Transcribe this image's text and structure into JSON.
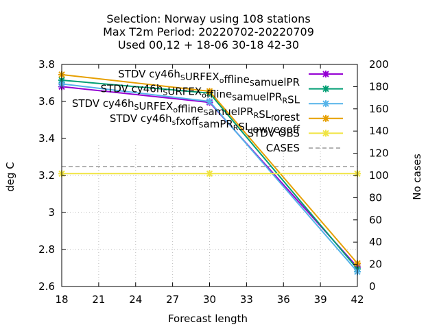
{
  "chart_data": {
    "type": "line",
    "title_lines": [
      "Selection: Norway using   108 stations",
      "Max T2m   Period: 20220702-20220709",
      "Used  00,12  + 18-06 30-18 42-30"
    ],
    "xlabel": "Forecast length",
    "ylabel": "deg C",
    "y2label": "No cases",
    "x_ticks": [
      "18",
      "21",
      "24",
      "27",
      "30",
      "33",
      "36",
      "39",
      "42"
    ],
    "y_ticks": [
      "3.8",
      "3.6",
      "3.4",
      "3.2",
      "3",
      "2.8",
      "2.6"
    ],
    "y2_ticks": [
      "200",
      "180",
      "160",
      "140",
      "120",
      "100",
      "80",
      "60",
      "40",
      "20",
      "0"
    ],
    "xlim": [
      18,
      42
    ],
    "ylim": [
      2.6,
      3.8
    ],
    "y2lim": [
      0,
      200
    ],
    "grid": "dotted, lower-left area only",
    "legend_position": "top-right",
    "x": [
      18,
      30,
      42
    ],
    "series": [
      {
        "name": "STDV cy46h_SURFEX_offline_SamuelPR",
        "label_parts": [
          [
            "STDV cy46h",
            ""
          ],
          [
            "S",
            "sub"
          ],
          [
            "URFEX",
            ""
          ],
          [
            "o",
            "sub"
          ],
          [
            "ffline",
            ""
          ],
          [
            "S",
            "sub"
          ],
          [
            "amuelPR",
            ""
          ]
        ],
        "color": "#9400d3",
        "marker": "x",
        "axis": "y1",
        "values": [
          3.68,
          3.595,
          2.705
        ]
      },
      {
        "name": "STDV cy46h_SURFEX_offline_SamuelPR_RSL",
        "label_parts": [
          [
            "STDV cy46h",
            ""
          ],
          [
            "S",
            "sub"
          ],
          [
            "URFEX",
            ""
          ],
          [
            "o",
            "sub"
          ],
          [
            "ffline",
            ""
          ],
          [
            "S",
            "sub"
          ],
          [
            "amuelPR",
            ""
          ],
          [
            "R",
            "sub"
          ],
          [
            "SL",
            ""
          ]
        ],
        "color": "#009e73",
        "marker": "x",
        "axis": "y1",
        "values": [
          3.715,
          3.645,
          2.695
        ]
      },
      {
        "name": "STDV cy46h_SURFEX_offline_SamuelPR_RSL_forest",
        "label_parts": [
          [
            "STDV cy46h",
            ""
          ],
          [
            "S",
            "sub"
          ],
          [
            "URFEX",
            ""
          ],
          [
            "o",
            "sub"
          ],
          [
            "ffline",
            ""
          ],
          [
            "S",
            "sub"
          ],
          [
            "amuelPR",
            ""
          ],
          [
            "R",
            "sub"
          ],
          [
            "SL",
            ""
          ],
          [
            "f",
            "sub"
          ],
          [
            "orest",
            ""
          ]
        ],
        "color": "#56b4e9",
        "marker": "x",
        "axis": "y1",
        "values": [
          3.695,
          3.6,
          2.68
        ]
      },
      {
        "name": "STDV cy46h_fxoff_SamPR_RSL_lowvegoff",
        "label_parts": [
          [
            "STDV cy46h",
            ""
          ],
          [
            "s",
            "sub"
          ],
          [
            "fxoff",
            ""
          ],
          [
            "S",
            "sub"
          ],
          [
            "amPR",
            ""
          ],
          [
            "R",
            "sub"
          ],
          [
            "SL",
            ""
          ],
          [
            "l",
            "sub"
          ],
          [
            "owvegoff",
            ""
          ]
        ],
        "color": "#e69f00",
        "marker": "x",
        "axis": "y1",
        "values": [
          3.745,
          3.655,
          2.725
        ]
      },
      {
        "name": "STDV OBS",
        "label_parts": [
          [
            "STDV OBS",
            ""
          ]
        ],
        "color": "#f0e442",
        "marker": "x",
        "axis": "y1",
        "values": [
          3.21,
          3.21,
          3.21
        ]
      },
      {
        "name": "CASES",
        "label_parts": [
          [
            "CASES",
            ""
          ]
        ],
        "color": "#999999",
        "marker": "none",
        "dash": true,
        "axis": "y2",
        "values": [
          108,
          108,
          108
        ]
      }
    ]
  }
}
